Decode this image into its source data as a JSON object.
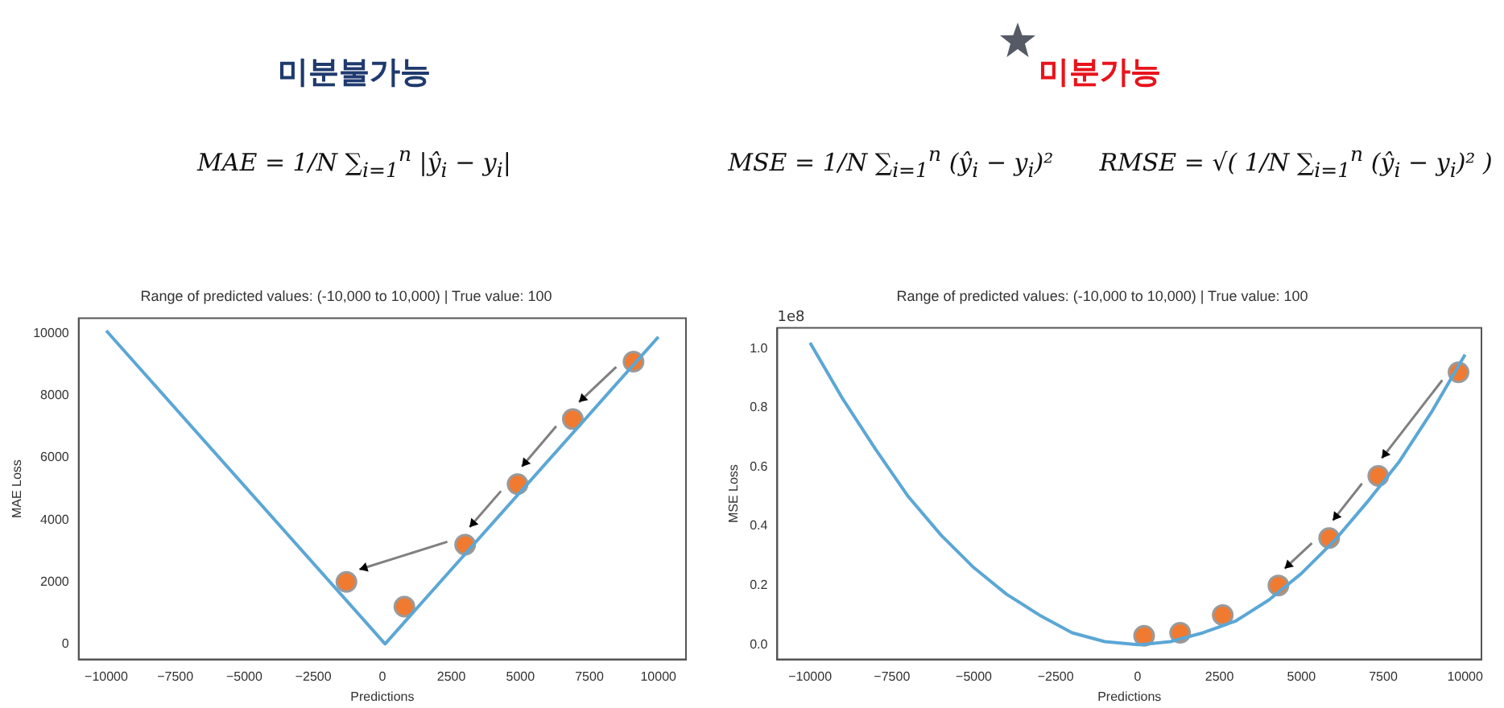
{
  "chart_data": [
    {
      "type": "line",
      "title": "Range of predicted values: (-10,000 to 10,000) | True value: 100",
      "xlabel": "Predictions",
      "ylabel": "MAE Loss",
      "annotations": [
        "미분불가능",
        "MAE = 1/N ∑$_{i=1}$$^{n}$ |ŷ$_{i}$ − y$_{i}$|"
      ],
      "xlim": [
        -11000,
        11000
      ],
      "xticks": [
        {
          "value": -10000,
          "label": "−10000"
        },
        {
          "value": -7500,
          "label": "−7500"
        },
        {
          "value": -5000,
          "label": "−5000"
        },
        {
          "value": -2500,
          "label": "−2500"
        },
        0,
        2500,
        5000,
        7500,
        10000
      ],
      "ylim": [
        -500,
        10500
      ],
      "yticks": [
        0,
        2000,
        4000,
        6000,
        8000,
        10000
      ],
      "grid": false,
      "legend": false,
      "series": [
        {
          "type": "line",
          "color": "#5ba7d6",
          "marker": "none",
          "x": [
            -10000,
            100,
            10000
          ],
          "values": [
            10100,
            0,
            9900
          ]
        },
        {
          "type": "scatter",
          "color": "#f07a30",
          "marker": "circle",
          "x": [
            800,
            -1300,
            3000,
            4900,
            6900,
            9100
          ],
          "values": [
            1200,
            2000,
            3200,
            5150,
            7250,
            9100
          ]
        }
      ]
    },
    {
      "type": "line",
      "title": "Range of predicted values: (-10,000 to 10,000) | True value: 100",
      "xlabel": "Predictions",
      "ylabel": "MSE Loss",
      "annotations": [
        "미분가능",
        "MSE = 1/N ∑$_{i=1}$$^{n}$ (ŷ$_{i}$ − y$_{i}$)²      RMSE = √( 1/N ∑$_{i=1}$$^{n}$ (ŷ$_{i}$ − y$_{i}$)² )",
        "1e8"
      ],
      "xlim": [
        -11000,
        10500
      ],
      "xticks": [
        {
          "value": -10000,
          "label": "−10000"
        },
        {
          "value": -7500,
          "label": "−7500"
        },
        {
          "value": -5000,
          "label": "−5000"
        },
        {
          "value": -2500,
          "label": "−2500"
        },
        0,
        2500,
        5000,
        7500,
        10000
      ],
      "ylim": [
        -0.05,
        1.07
      ],
      "yticks": [
        {
          "value": 0,
          "label": "0.0"
        },
        {
          "value": 0.2,
          "label": "0.2"
        },
        {
          "value": 0.4,
          "label": "0.4"
        },
        {
          "value": 0.6,
          "label": "0.6"
        },
        {
          "value": 0.8,
          "label": "0.8"
        },
        {
          "value": 1,
          "label": "1.0"
        }
      ],
      "grid": false,
      "legend": false,
      "series": [
        {
          "type": "line",
          "color": "#5ba7d6",
          "marker": "none",
          "x": [
            -10000,
            -9000,
            -8000,
            -7000,
            -6000,
            -5000,
            -4000,
            -3000,
            -2000,
            -1000,
            0,
            100,
            1000,
            2000,
            3000,
            4000,
            5000,
            6000,
            7000,
            8000,
            9000,
            10000
          ],
          "values": [
            1.02,
            0.83,
            0.66,
            0.5,
            0.37,
            0.26,
            0.17,
            0.1,
            0.04,
            0.01,
            0,
            0,
            0.01,
            0.04,
            0.08,
            0.15,
            0.24,
            0.35,
            0.48,
            0.62,
            0.79,
            0.98
          ]
        },
        {
          "type": "scatter",
          "color": "#f07a30",
          "marker": "circle",
          "x": [
            200,
            1300,
            2600,
            4300,
            5850,
            7350,
            9800
          ],
          "values": [
            0.03,
            0.04,
            0.1,
            0.2,
            0.36,
            0.57,
            0.92
          ]
        }
      ]
    }
  ]
}
